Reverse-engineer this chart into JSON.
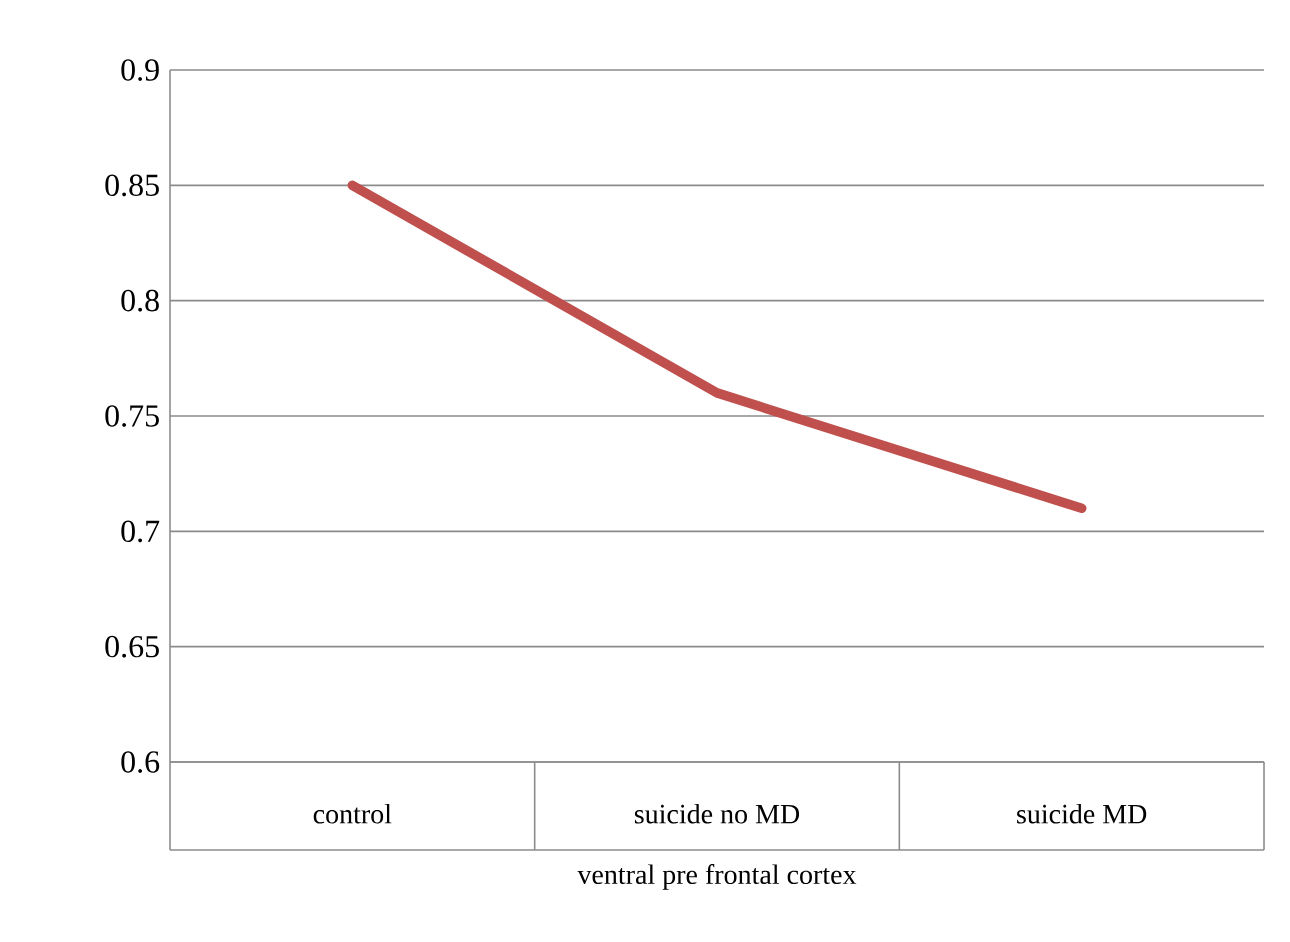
{
  "chart_data": {
    "type": "line",
    "xlabel": "ventral pre frontal cortex",
    "categories": [
      "control",
      "suicide no MD",
      "suicide MD"
    ],
    "series": [
      {
        "color": "#c0504d",
        "values": [
          0.85,
          0.76,
          0.71
        ]
      }
    ],
    "ylim": [
      0.6,
      0.9
    ],
    "yticks": [
      0.6,
      0.65,
      0.7,
      0.75,
      0.8,
      0.85,
      0.9
    ],
    "grid": "y",
    "marker": "none",
    "line_style": "solid"
  }
}
